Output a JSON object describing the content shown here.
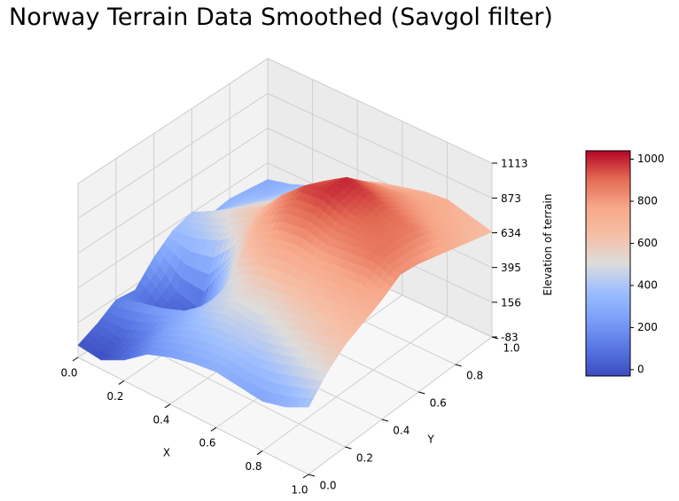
{
  "chart_data": {
    "type": "surface3d",
    "title": "Norway Terrain Data Smoothed (Savgol filter)",
    "xlabel": "X",
    "ylabel": "Y",
    "zlabel": "Elevation of terrain",
    "x_ticks": [
      "0.0",
      "0.2",
      "0.4",
      "0.6",
      "0.8",
      "1.0"
    ],
    "y_ticks": [
      "0.0",
      "0.2",
      "0.4",
      "0.6",
      "0.8",
      "1.0"
    ],
    "z_ticks": [
      "-83",
      "156",
      "395",
      "634",
      "873",
      "1113"
    ],
    "xlim": [
      0,
      1
    ],
    "ylim": [
      0,
      1
    ],
    "zlim": [
      -83,
      1113
    ],
    "colormap": "coolwarm",
    "colorbar": {
      "ticks": [
        "0",
        "200",
        "400",
        "600",
        "800",
        "1000"
      ],
      "range": [
        -30,
        1040
      ]
    },
    "grid": true,
    "elevation_profile": {
      "x": [
        0.0,
        0.1,
        0.2,
        0.3,
        0.4,
        0.5,
        0.6,
        0.7,
        0.8,
        0.9,
        1.0
      ],
      "y": [
        0.0,
        0.1,
        0.2,
        0.3,
        0.4,
        0.5,
        0.6,
        0.7,
        0.8,
        0.9,
        1.0
      ],
      "z": [
        [
          0,
          -20,
          60,
          180,
          240,
          280,
          300,
          280,
          260,
          300,
          380
        ],
        [
          60,
          40,
          120,
          260,
          340,
          380,
          400,
          380,
          420,
          480,
          520
        ],
        [
          140,
          200,
          240,
          300,
          420,
          480,
          460,
          500,
          560,
          600,
          620
        ],
        [
          120,
          40,
          20,
          160,
          460,
          560,
          580,
          620,
          640,
          660,
          680
        ],
        [
          260,
          100,
          60,
          360,
          620,
          720,
          760,
          740,
          760,
          780,
          740
        ],
        [
          360,
          380,
          440,
          560,
          760,
          860,
          880,
          840,
          860,
          880,
          820
        ],
        [
          400,
          480,
          560,
          640,
          820,
          960,
          980,
          920,
          900,
          880,
          800
        ],
        [
          300,
          420,
          520,
          600,
          760,
          900,
          1000,
          960,
          900,
          860,
          760
        ],
        [
          320,
          380,
          460,
          560,
          700,
          820,
          880,
          860,
          820,
          780,
          720
        ],
        [
          300,
          340,
          420,
          520,
          640,
          720,
          760,
          780,
          760,
          720,
          680
        ],
        [
          280,
          320,
          380,
          480,
          560,
          620,
          660,
          700,
          720,
          680,
          640
        ]
      ]
    }
  }
}
